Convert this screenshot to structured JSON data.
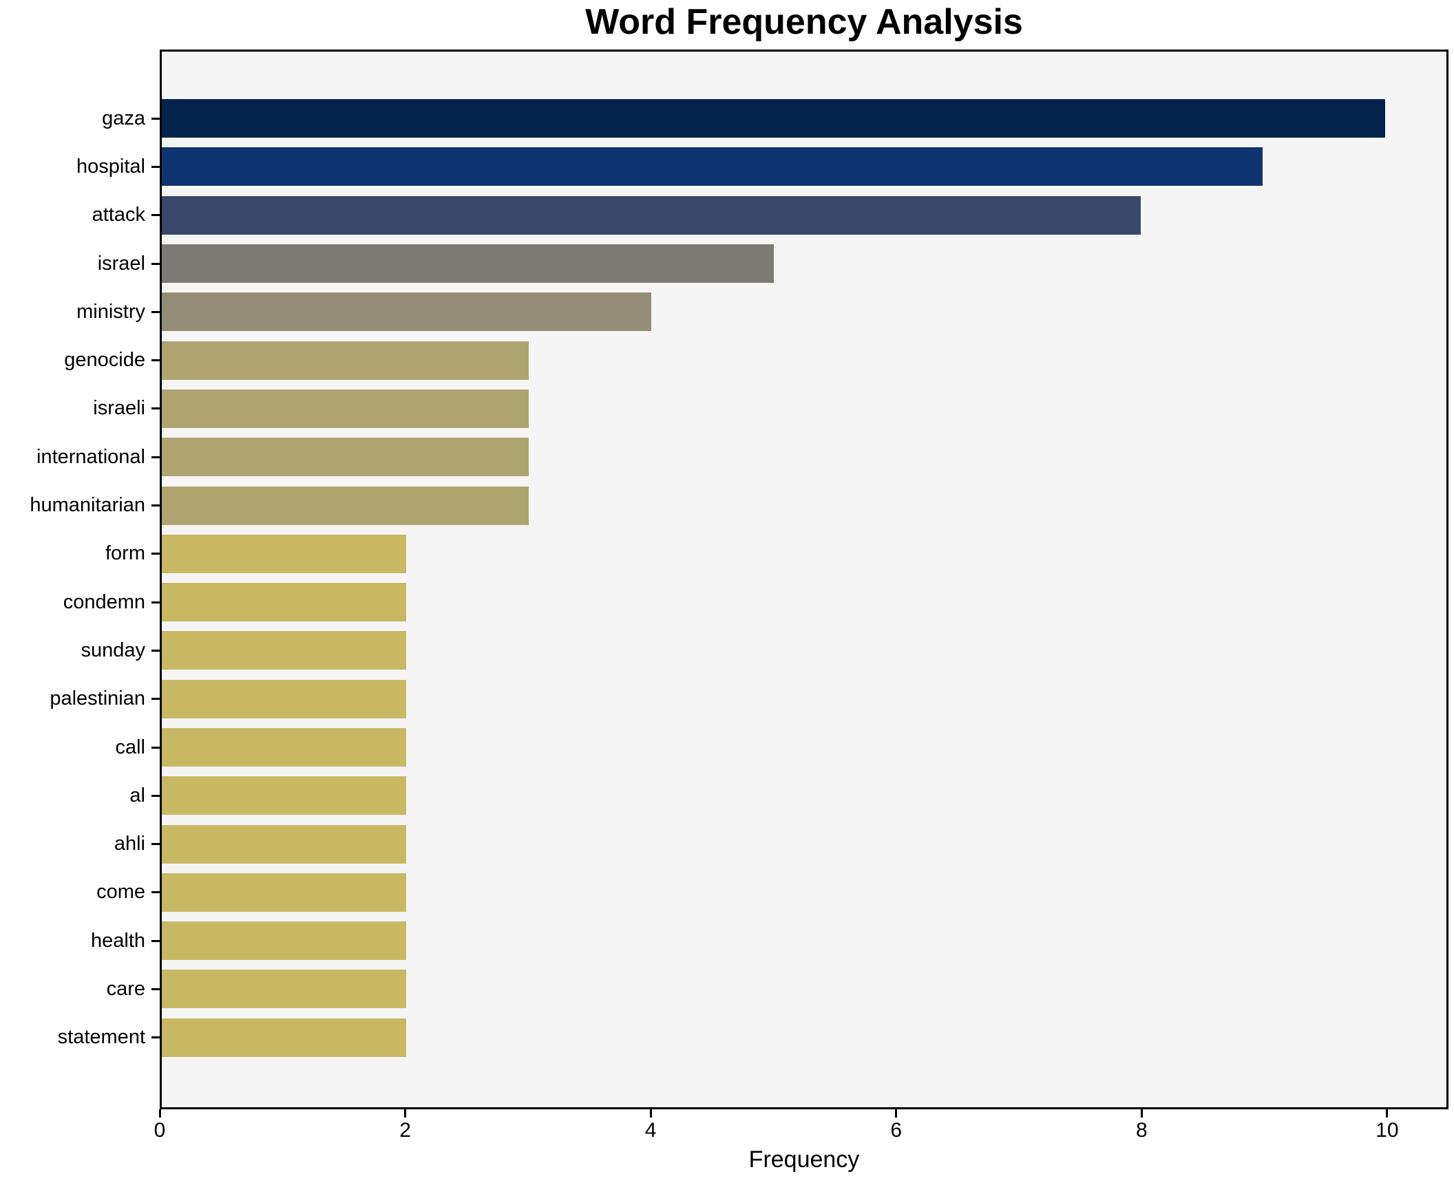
{
  "chart_data": {
    "type": "bar",
    "orientation": "horizontal",
    "title": "Word Frequency Analysis",
    "xlabel": "Frequency",
    "ylabel": "",
    "categories": [
      "gaza",
      "hospital",
      "attack",
      "israel",
      "ministry",
      "genocide",
      "israeli",
      "international",
      "humanitarian",
      "form",
      "condemn",
      "sunday",
      "palestinian",
      "call",
      "al",
      "ahli",
      "come",
      "health",
      "care",
      "statement"
    ],
    "values": [
      10,
      9,
      8,
      5,
      4,
      3,
      3,
      3,
      3,
      2,
      2,
      2,
      2,
      2,
      2,
      2,
      2,
      2,
      2,
      2
    ],
    "bar_colors": [
      "#03224c",
      "#0e3371",
      "#394768",
      "#7c7a75",
      "#948e78",
      "#aea46f",
      "#aea46f",
      "#aea46f",
      "#aea46f",
      "#c8b763",
      "#c8b763",
      "#c8b763",
      "#c8b763",
      "#c8b763",
      "#c8b763",
      "#c8b763",
      "#c8b763",
      "#c8b763",
      "#c8b763",
      "#c8b763"
    ],
    "xlim": [
      0,
      10.5
    ],
    "xticks": [
      0,
      2,
      4,
      6,
      8,
      10
    ],
    "plot_background": "#f5f5f6",
    "figure_background": "#ffffff",
    "spine_color": "#000000",
    "grid": false,
    "legend": "none"
  }
}
